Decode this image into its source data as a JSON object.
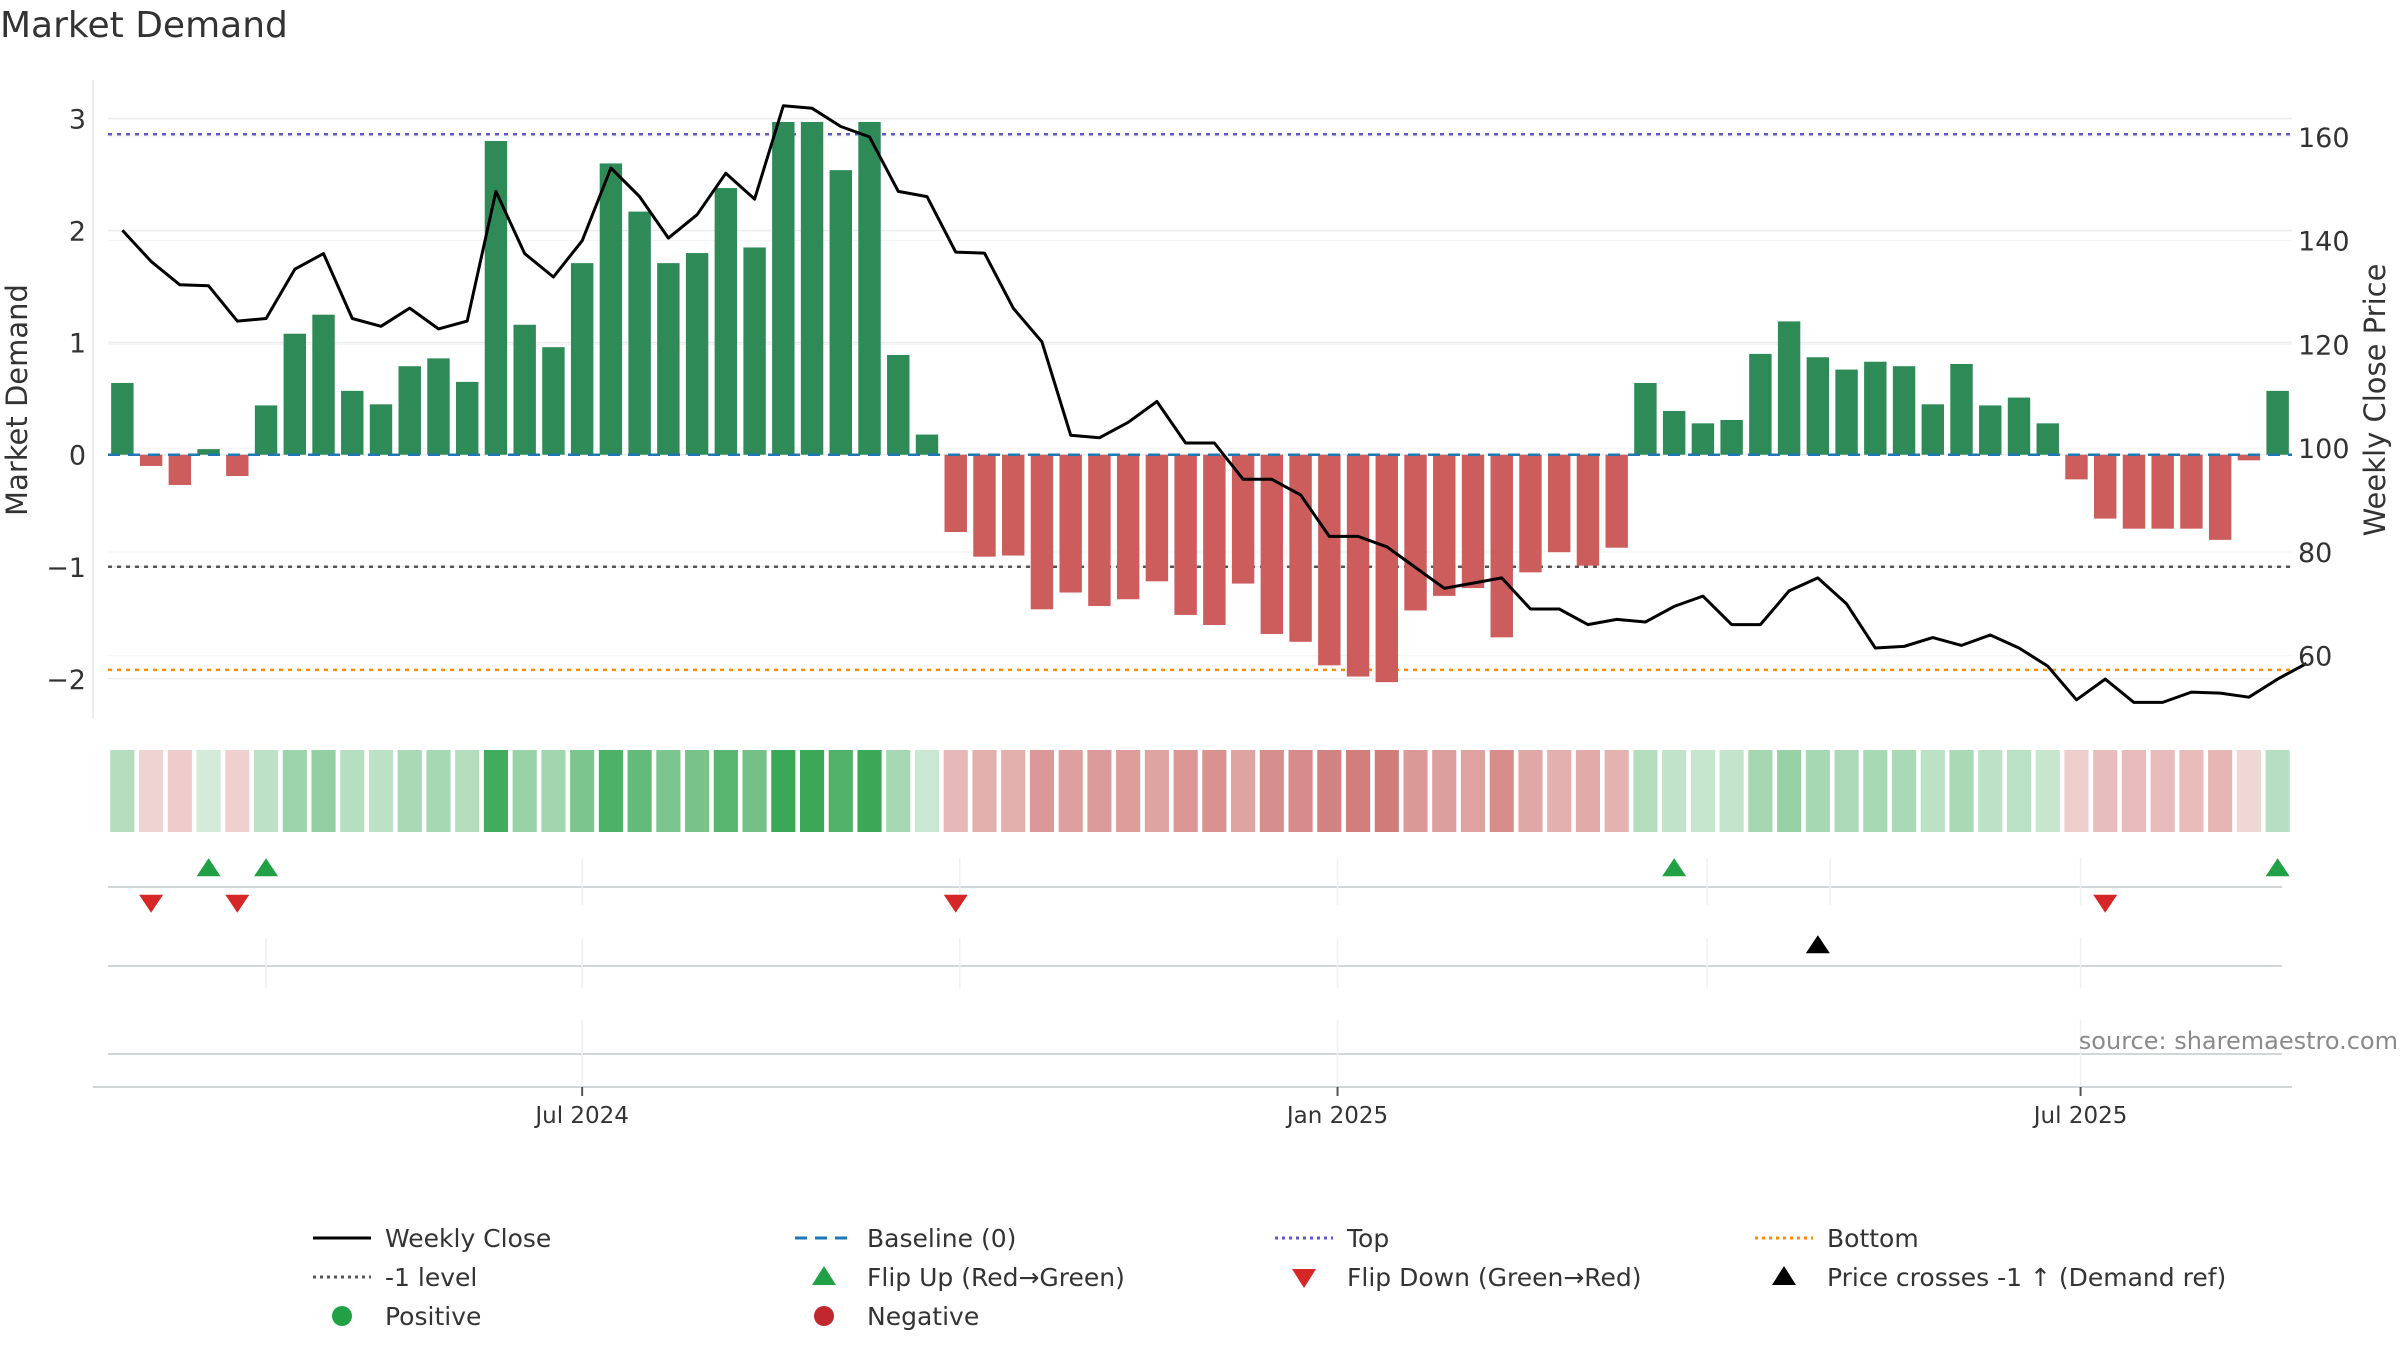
{
  "chart_data": {
    "type": "bar",
    "title": "Market Demand",
    "ylabel": "Market Demand",
    "y2label": "Weekly Close Price",
    "ylim": [
      -2.35,
      3.3
    ],
    "y2lim": [
      48,
      170
    ],
    "yticks": [
      -2,
      -1,
      0,
      1,
      2,
      3
    ],
    "y2ticks": [
      60,
      80,
      100,
      120,
      140,
      160
    ],
    "x_start": "2024-03-11",
    "x_ticks": [
      {
        "label": "Jul 2024",
        "date": "2024-07-01"
      },
      {
        "label": "Jan 2025",
        "date": "2025-01-01"
      },
      {
        "label": "Jul 2025",
        "date": "2025-07-01"
      }
    ],
    "reference_lines": {
      "top": 2.86,
      "minus_one": -1,
      "bottom": -1.92,
      "baseline": 0
    },
    "series": [
      {
        "name": "Market Demand",
        "values": [
          0.64,
          -0.1,
          -0.27,
          0.05,
          -0.19,
          0.44,
          1.08,
          1.25,
          0.57,
          0.45,
          0.79,
          0.86,
          0.65,
          2.8,
          1.16,
          0.96,
          1.71,
          2.6,
          2.17,
          1.71,
          1.8,
          2.38,
          1.85,
          2.97,
          2.97,
          2.54,
          2.97,
          0.89,
          0.18,
          -0.69,
          -0.91,
          -0.9,
          -1.38,
          -1.23,
          -1.35,
          -1.29,
          -1.13,
          -1.43,
          -1.52,
          -1.15,
          -1.6,
          -1.67,
          -1.88,
          -1.98,
          -2.03,
          -1.39,
          -1.26,
          -1.19,
          -1.63,
          -1.05,
          -0.87,
          -0.99,
          -0.83,
          0.64,
          0.39,
          0.28,
          0.31,
          0.9,
          1.19,
          0.87,
          0.76,
          0.83,
          0.79,
          0.45,
          0.81,
          0.44,
          0.51,
          0.28,
          -0.22,
          -0.57,
          -0.66,
          -0.66,
          -0.66,
          -0.76,
          -0.05,
          0.57
        ]
      },
      {
        "name": "Weekly Close",
        "values": [
          142,
          136,
          131.5,
          131.3,
          124.5,
          125,
          134.5,
          137.5,
          125,
          123.5,
          127,
          123,
          124.5,
          149.5,
          137.5,
          133,
          140,
          154,
          148.5,
          140.5,
          145,
          153,
          148,
          166,
          165.5,
          162,
          160,
          149.5,
          148.5,
          137.8,
          137.6,
          127,
          120.5,
          102.5,
          102,
          105,
          109,
          101,
          101,
          94,
          94,
          91,
          83,
          83,
          81,
          77,
          73,
          74,
          75,
          69,
          69,
          66,
          67,
          66.5,
          69.5,
          71.5,
          66,
          66,
          72.5,
          75,
          70,
          61.5,
          61.8,
          63.5,
          62,
          64,
          61.5,
          58,
          51.5,
          55.5,
          51,
          51,
          53,
          52.8,
          52,
          55.5,
          58.5
        ]
      }
    ],
    "signals": {
      "flip_up": [
        3,
        5,
        54,
        75
      ],
      "flip_down": [
        1,
        4,
        29,
        69
      ],
      "price_cross": [
        59
      ]
    },
    "annotation": "source: sharemaestro.com"
  },
  "legend": [
    {
      "label": "Weekly Close",
      "kind": "line",
      "color": "#000000",
      "dash": ""
    },
    {
      "label": "Baseline (0)",
      "kind": "line",
      "color": "#1f77b4",
      "dash": "12,8"
    },
    {
      "label": "Top",
      "kind": "line",
      "color": "#5e57c8",
      "dash": "3,4"
    },
    {
      "label": "Bottom",
      "kind": "line",
      "color": "#ff8c00",
      "dash": "3,4"
    },
    {
      "label": "-1 level",
      "kind": "line",
      "color": "#555555",
      "dash": "3,4"
    },
    {
      "label": "Flip Up (Red→Green)",
      "kind": "tri-up",
      "color": "#22a045"
    },
    {
      "label": "Flip Down (Green→Red)",
      "kind": "tri-down",
      "color": "#d62728"
    },
    {
      "label": "Price crosses -1 ↑ (Demand ref)",
      "kind": "tri-up",
      "color": "#000000"
    },
    {
      "label": "Positive",
      "kind": "dot",
      "color": "#22a045"
    },
    {
      "label": "Negative",
      "kind": "dot",
      "color": "#c0282d"
    }
  ],
  "colors": {
    "positive_bar": "#2e8b57",
    "negative_bar": "#cd5c5c",
    "heat_pos": "#3aa856",
    "heat_neg": "#c0504d"
  }
}
